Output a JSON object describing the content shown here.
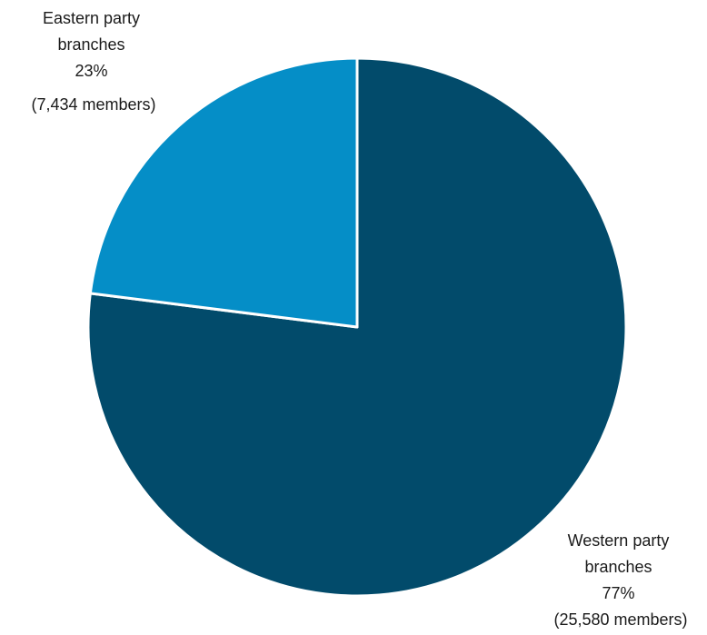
{
  "chart_data": {
    "type": "pie",
    "title": "",
    "start_angle_deg": 0,
    "direction": "clockwise",
    "colors": {
      "western": "#024b6b",
      "eastern": "#058ec7",
      "border": "#ffffff",
      "text": "#1a1a1a"
    },
    "slices": [
      {
        "key": "western",
        "name": "Western party branches",
        "percent": 77,
        "members": 25580,
        "label_lines": [
          "Western party",
          "branches",
          "77%",
          "(25,580 members)"
        ]
      },
      {
        "key": "eastern",
        "name": "Eastern party branches",
        "percent": 23,
        "members": 7434,
        "label_lines": [
          "Eastern party",
          "branches",
          "23%",
          "(7,434 members)"
        ]
      }
    ]
  }
}
